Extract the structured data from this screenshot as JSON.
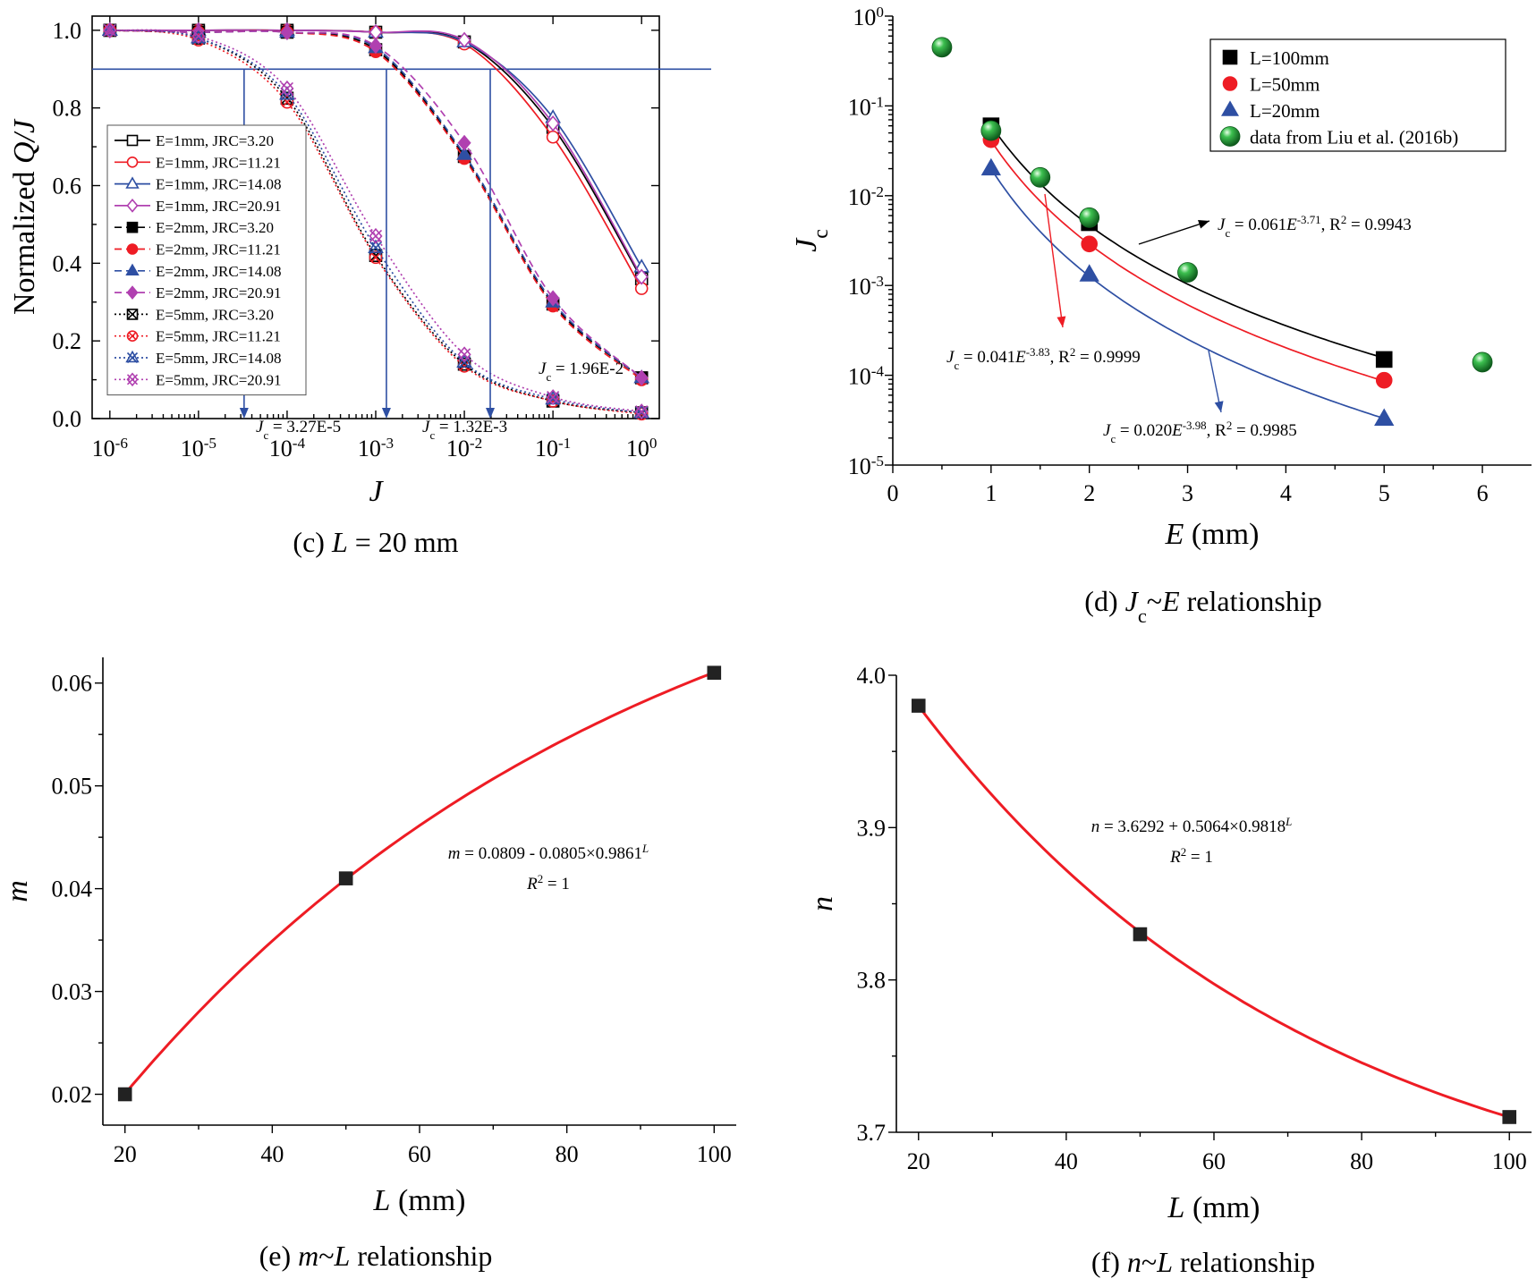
{
  "chart_data": [
    {
      "panel": "c",
      "caption": "(c) L = 20 mm",
      "type": "line",
      "xscale": "log",
      "xlabel": "J",
      "ylabel": "Normalized Q/J",
      "xlim": [
        1e-06,
        1
      ],
      "ylim": [
        0,
        1.0
      ],
      "x_ticks": [
        "10^-6",
        "10^-5",
        "10^-4",
        "10^-3",
        "10^-2",
        "10^-1",
        "10^0"
      ],
      "y_ticks": [
        "0.0",
        "0.2",
        "0.4",
        "0.6",
        "0.8",
        "1.0"
      ],
      "x": [
        1e-06,
        1e-05,
        0.0001,
        0.001,
        0.01,
        0.1,
        1
      ],
      "reference_line": {
        "y": 0.9
      },
      "series": [
        {
          "name": "E=1mm, JRC=3.20",
          "color": "#000000",
          "marker": "open-square",
          "dash": "solid",
          "values": [
            1.0,
            1.0,
            1.0,
            0.995,
            0.97,
            0.75,
            0.36
          ]
        },
        {
          "name": "E=1mm, JRC=11.21",
          "color": "#ee1c24",
          "marker": "open-circle",
          "dash": "solid",
          "values": [
            1.0,
            1.0,
            1.0,
            0.995,
            0.965,
            0.725,
            0.335
          ]
        },
        {
          "name": "E=1mm, JRC=14.08",
          "color": "#2e4fa3",
          "marker": "open-triangle",
          "dash": "solid",
          "values": [
            1.0,
            1.0,
            1.0,
            0.995,
            0.97,
            0.775,
            0.39
          ]
        },
        {
          "name": "E=1mm, JRC=20.91",
          "color": "#b040b0",
          "marker": "open-diamond",
          "dash": "solid",
          "values": [
            1.0,
            1.0,
            1.0,
            0.995,
            0.975,
            0.76,
            0.365
          ]
        },
        {
          "name": "E=2mm, JRC=3.20",
          "color": "#000000",
          "marker": "filled-square",
          "dash": "dash",
          "values": [
            1.0,
            0.995,
            0.995,
            0.95,
            0.675,
            0.295,
            0.105
          ]
        },
        {
          "name": "E=2mm, JRC=11.21",
          "color": "#ee1c24",
          "marker": "filled-circle",
          "dash": "dash",
          "values": [
            1.0,
            0.995,
            0.995,
            0.945,
            0.67,
            0.29,
            0.1
          ]
        },
        {
          "name": "E=2mm, JRC=14.08",
          "color": "#2e4fa3",
          "marker": "filled-triangle",
          "dash": "dash",
          "values": [
            1.0,
            0.995,
            0.995,
            0.955,
            0.68,
            0.3,
            0.105
          ]
        },
        {
          "name": "E=2mm, JRC=20.91",
          "color": "#b040b0",
          "marker": "filled-diamond",
          "dash": "dash",
          "values": [
            1.0,
            0.995,
            0.995,
            0.96,
            0.71,
            0.31,
            0.105
          ]
        },
        {
          "name": "E=5mm, JRC=3.20",
          "color": "#000000",
          "marker": "box-x",
          "dash": "dot",
          "values": [
            1.0,
            0.98,
            0.825,
            0.42,
            0.14,
            0.045,
            0.015
          ]
        },
        {
          "name": "E=5mm, JRC=11.21",
          "color": "#ee1c24",
          "marker": "circle-x",
          "dash": "dot",
          "values": [
            1.0,
            0.975,
            0.815,
            0.415,
            0.135,
            0.045,
            0.012
          ]
        },
        {
          "name": "E=5mm, JRC=14.08",
          "color": "#2e4fa3",
          "marker": "triangle-x",
          "dash": "dot",
          "values": [
            1.0,
            0.98,
            0.835,
            0.44,
            0.145,
            0.05,
            0.015
          ]
        },
        {
          "name": "E=5mm, JRC=20.91",
          "color": "#b040b0",
          "marker": "diamond-x",
          "dash": "dot",
          "values": [
            1.0,
            0.985,
            0.85,
            0.47,
            0.165,
            0.055,
            0.018
          ]
        }
      ],
      "annotations": [
        {
          "text": "Jc = 3.27E-5",
          "x": 3.27e-05
        },
        {
          "text": "Jc = 1.32E-3",
          "x": 0.00132
        },
        {
          "text": "Jc = 1.96E-2",
          "x": 0.0196
        }
      ]
    },
    {
      "panel": "d",
      "caption": "(d) Jc~E relationship",
      "type": "scatter",
      "yscale": "log",
      "xlabel": "E (mm)",
      "ylabel": "Jc",
      "xlim": [
        0,
        6.5
      ],
      "ylim": [
        1e-05,
        1
      ],
      "x_ticks": [
        "0",
        "1",
        "2",
        "3",
        "4",
        "5",
        "6"
      ],
      "y_ticks": [
        "10^-5",
        "10^-4",
        "10^-3",
        "10^-2",
        "10^-1",
        "10^0"
      ],
      "series": [
        {
          "name": "L=100mm",
          "color": "#000000",
          "marker": "filled-square",
          "x": [
            1,
            2,
            5
          ],
          "y": [
            0.06,
            0.005,
            0.00015
          ],
          "fit": {
            "a": 0.061,
            "b": -3.71,
            "r2": "0.9943",
            "label": "Jc = 0.061E^-3.71, R^2 = 0.9943"
          }
        },
        {
          "name": "L=50mm",
          "color": "#ee1c24",
          "marker": "filled-circle",
          "x": [
            1,
            2,
            5
          ],
          "y": [
            0.042,
            0.0029,
            8.8e-05
          ],
          "fit": {
            "a": 0.041,
            "b": -3.83,
            "r2": "0.9999",
            "label": "Jc = 0.041E^-3.83, R^2 = 0.9999"
          }
        },
        {
          "name": "L=20mm",
          "color": "#2e4fa3",
          "marker": "filled-triangle",
          "x": [
            1,
            2,
            5
          ],
          "y": [
            0.02,
            0.00132,
            3.27e-05
          ],
          "fit": {
            "a": 0.02,
            "b": -3.98,
            "r2": "0.9985",
            "label": "Jc = 0.020E^-3.98, R^2 = 0.9985"
          }
        },
        {
          "name": "data from Liu et al. (2016b)",
          "color": "#1e9a3c",
          "marker": "green-sphere",
          "x": [
            0.5,
            1,
            1.5,
            2,
            3,
            6
          ],
          "y": [
            0.45,
            0.053,
            0.016,
            0.0057,
            0.0014,
            0.00014
          ]
        }
      ]
    },
    {
      "panel": "e",
      "caption": "(e) m~L relationship",
      "type": "scatter",
      "xlabel": "L (mm)",
      "ylabel": "m",
      "xlim": [
        17,
        103
      ],
      "ylim": [
        0.017,
        0.0625
      ],
      "x_ticks": [
        "20",
        "40",
        "60",
        "80",
        "100"
      ],
      "y_ticks": [
        "0.02",
        "0.03",
        "0.04",
        "0.05",
        "0.06"
      ],
      "x": [
        20,
        50,
        100
      ],
      "y": [
        0.02,
        0.041,
        0.061
      ],
      "fit": {
        "a": 0.0809,
        "b": 0.0805,
        "c": 0.9861,
        "line1": "m = 0.0809 - 0.0805×0.9861^L",
        "line2": "R^2 = 1"
      }
    },
    {
      "panel": "f",
      "caption": "(f) n~L relationship",
      "type": "scatter",
      "xlabel": "L (mm)",
      "ylabel": "n",
      "xlim": [
        17,
        103
      ],
      "ylim": [
        3.7,
        4.0
      ],
      "x_ticks": [
        "20",
        "40",
        "60",
        "80",
        "100"
      ],
      "y_ticks": [
        "3.7",
        "3.8",
        "3.9",
        "4.0"
      ],
      "x": [
        20,
        50,
        100
      ],
      "y": [
        3.98,
        3.83,
        3.71
      ],
      "fit": {
        "a": 3.6292,
        "b": 0.5064,
        "c": 0.9818,
        "line1": "n = 3.6292 + 0.5064×0.9818^L",
        "line2": "R^2 = 1"
      }
    }
  ]
}
